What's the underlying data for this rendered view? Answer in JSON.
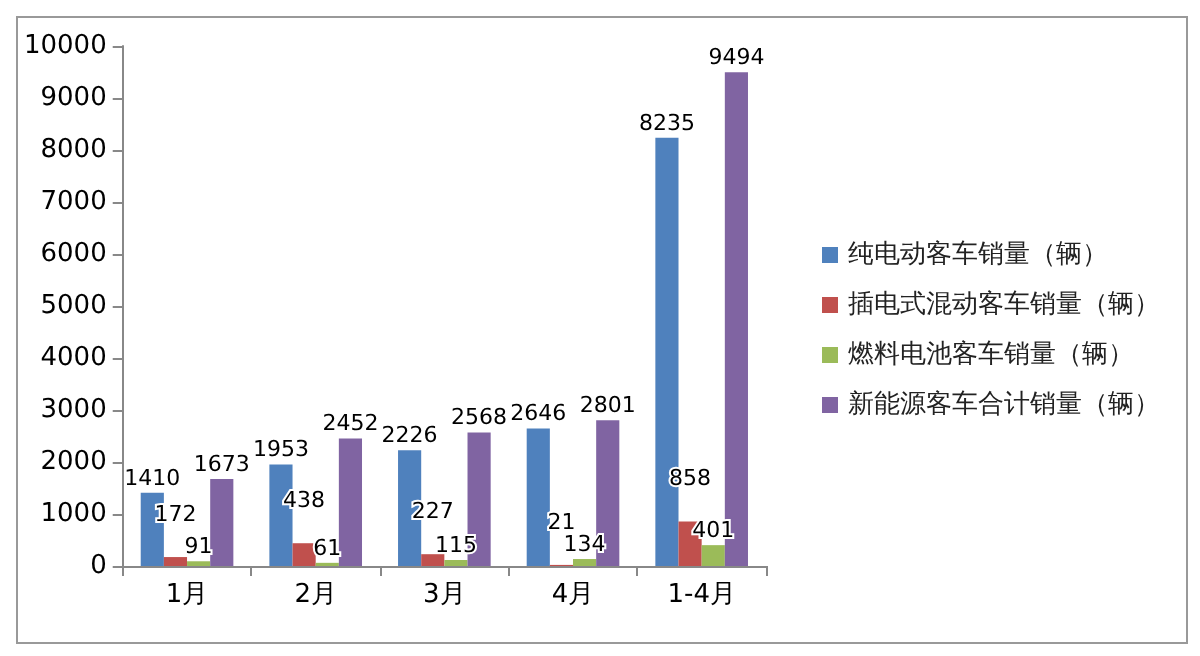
{
  "chart_data": {
    "type": "bar",
    "categories": [
      "1月",
      "2月",
      "3月",
      "4月",
      "1-4月"
    ],
    "series": [
      {
        "name": "纯电动客车销量（辆）",
        "color": "#4f81bd",
        "values": [
          1410,
          1953,
          2226,
          2646,
          8235
        ]
      },
      {
        "name": "插电式混动客车销量（辆）",
        "color": "#c0504d",
        "values": [
          172,
          438,
          227,
          21,
          858
        ]
      },
      {
        "name": "燃料电池客车销量（辆）",
        "color": "#9bbb59",
        "values": [
          91,
          61,
          115,
          134,
          401
        ]
      },
      {
        "name": "新能源客车合计销量（辆）",
        "color": "#8064a2",
        "values": [
          1673,
          2452,
          2568,
          2801,
          9494
        ]
      }
    ],
    "ylim": [
      0,
      10000
    ],
    "yticks": [
      0,
      1000,
      2000,
      3000,
      4000,
      5000,
      6000,
      7000,
      8000,
      9000,
      10000
    ],
    "grid": false,
    "legend": "right",
    "data_labels": true
  }
}
